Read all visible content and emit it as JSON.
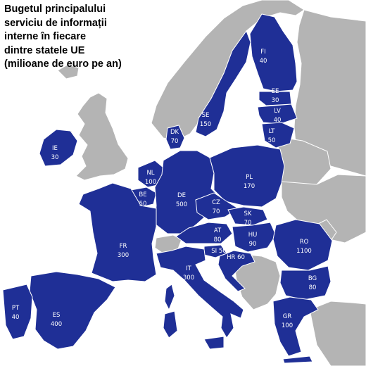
{
  "title_lines": [
    "Bugetul principalului",
    "serviciu de informații",
    "interne în fiecare",
    "dintre statele UE",
    "(milioane de euro pe an)"
  ],
  "colors": {
    "eu_member": "#1f2f96",
    "non_member": "#b4b4b4",
    "sea": "#ffffff",
    "label_text": "#ffffff",
    "border": "#ffffff"
  },
  "countries": [
    {
      "code": "FI",
      "value": "40"
    },
    {
      "code": "SE",
      "value": "150"
    },
    {
      "code": "EE",
      "value": "30"
    },
    {
      "code": "LV",
      "value": "40"
    },
    {
      "code": "LT",
      "value": "50"
    },
    {
      "code": "DK",
      "value": "70"
    },
    {
      "code": "IE",
      "value": "30"
    },
    {
      "code": "NL",
      "value": "100"
    },
    {
      "code": "BE",
      "value": "50"
    },
    {
      "code": "DE",
      "value": "500"
    },
    {
      "code": "PL",
      "value": "170"
    },
    {
      "code": "CZ",
      "value": "70"
    },
    {
      "code": "SK",
      "value": "70"
    },
    {
      "code": "AT",
      "value": "80"
    },
    {
      "code": "HU",
      "value": "90"
    },
    {
      "code": "SI",
      "value": "50"
    },
    {
      "code": "HR",
      "value": "60"
    },
    {
      "code": "RO",
      "value": "1100"
    },
    {
      "code": "BG",
      "value": "80"
    },
    {
      "code": "FR",
      "value": "300"
    },
    {
      "code": "IT",
      "value": "300"
    },
    {
      "code": "PT",
      "value": "40"
    },
    {
      "code": "ES",
      "value": "400"
    },
    {
      "code": "GR",
      "value": "100"
    }
  ]
}
